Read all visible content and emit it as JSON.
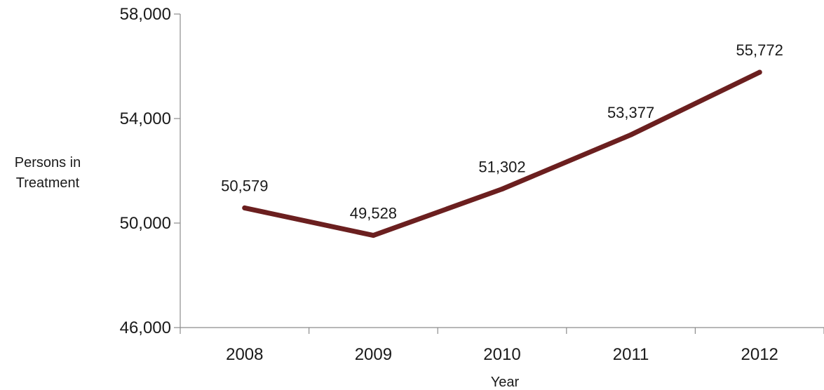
{
  "chart_data": {
    "type": "line",
    "title": "",
    "xlabel": "Year",
    "ylabel": [
      "Persons in",
      "Treatment"
    ],
    "categories": [
      "2008",
      "2009",
      "2010",
      "2011",
      "2012"
    ],
    "series": [
      {
        "values": [
          50579,
          49528,
          51302,
          53377,
          55772
        ],
        "labels": [
          "50,579",
          "49,528",
          "51,302",
          "53,377",
          "55,772"
        ],
        "color": "#6b1f1f"
      }
    ],
    "ylim": [
      46000,
      58000
    ],
    "yticks": [
      46000,
      50000,
      54000,
      58000
    ],
    "ytick_labels": [
      "46,000",
      "50,000",
      "54,000",
      "58,000"
    ],
    "grid": false,
    "legend": "none"
  }
}
